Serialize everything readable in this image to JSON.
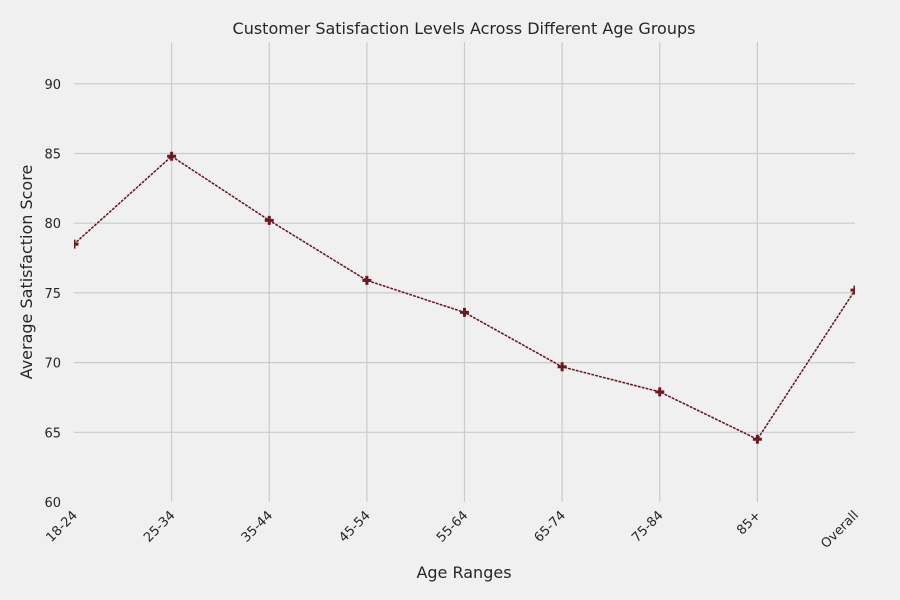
{
  "chart_data": {
    "type": "line",
    "title": "Customer Satisfaction Levels Across Different Age Groups",
    "xlabel": "Age Ranges",
    "ylabel": "Average Satisfaction Score",
    "categories": [
      "18-24",
      "25-34",
      "35-44",
      "45-54",
      "55-64",
      "65-74",
      "75-84",
      "85+",
      "Overall"
    ],
    "series": [
      {
        "name": "Average Satisfaction Score",
        "values": [
          78.5,
          84.8,
          80.2,
          75.9,
          73.6,
          69.7,
          67.9,
          64.5,
          75.2
        ],
        "color": "#6b1a22",
        "linestyle": "dotted",
        "marker": "plus"
      }
    ],
    "ylim": [
      60,
      93
    ],
    "yticks": [
      60,
      65,
      70,
      75,
      80,
      85,
      90
    ],
    "grid": true,
    "background": "#f0f0f0"
  }
}
